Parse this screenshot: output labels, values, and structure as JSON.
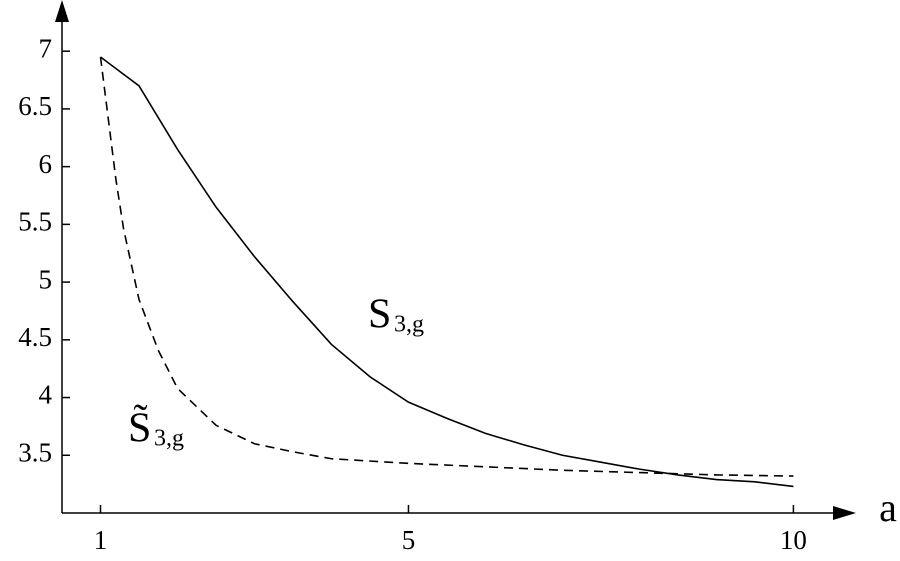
{
  "chart_data": {
    "type": "line",
    "xlabel": "a",
    "xlim": [
      0.5,
      10.8
    ],
    "xticks": [
      1,
      5,
      10
    ],
    "ylim": [
      3,
      7.4
    ],
    "yticks": [
      {
        "value": 3.5,
        "label": "3.5"
      },
      4,
      {
        "value": 4.5,
        "label": "4.5"
      },
      5,
      {
        "value": 5.5,
        "label": "5.5"
      },
      6,
      {
        "value": 6.5,
        "label": "6.5"
      },
      7
    ],
    "series": [
      {
        "name": "S",
        "subscript": "3,g",
        "color": "#000000",
        "dash": false,
        "x": [
          1,
          1.36,
          1.5,
          2,
          2.5,
          3,
          3.5,
          4,
          4.5,
          5,
          5.5,
          6,
          6.5,
          7,
          7.5,
          8,
          8.5,
          9,
          9.5,
          10
        ],
        "values": [
          6.95,
          6.77,
          6.7,
          6.15,
          5.65,
          5.22,
          4.83,
          4.46,
          4.18,
          3.96,
          3.82,
          3.69,
          3.59,
          3.5,
          3.44,
          3.38,
          3.33,
          3.29,
          3.27,
          3.23
        ]
      },
      {
        "name": "S̃",
        "subscript": "3,g",
        "color": "#000000",
        "dash": true,
        "x": [
          1,
          1.1,
          1.2,
          1.3,
          1.5,
          1.75,
          2,
          2.5,
          3,
          3.5,
          4,
          5,
          6,
          7,
          8,
          9,
          10
        ],
        "values": [
          6.95,
          6.42,
          5.89,
          5.46,
          4.85,
          4.41,
          4.08,
          3.76,
          3.6,
          3.53,
          3.47,
          3.43,
          3.4,
          3.37,
          3.35,
          3.33,
          3.32
        ]
      }
    ]
  }
}
